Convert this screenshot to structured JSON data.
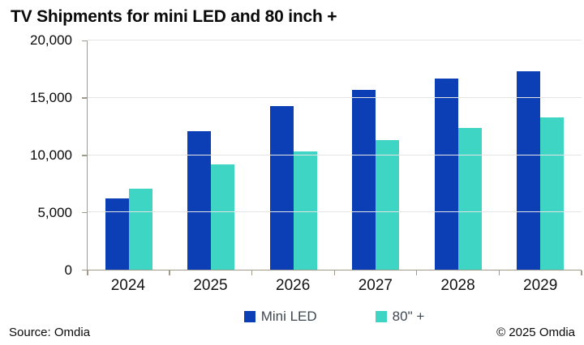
{
  "header": {
    "title": "TV Shipments for mini LED and 80 inch +"
  },
  "chart_data": {
    "type": "bar",
    "title": "TV Shipments for mini LED and 80 inch +",
    "categories": [
      "2024",
      "2025",
      "2026",
      "2027",
      "2028",
      "2029"
    ],
    "series": [
      {
        "name": "Mini LED",
        "color": "#0c3eb6",
        "values": [
          6200,
          12100,
          14300,
          15700,
          16700,
          17300
        ]
      },
      {
        "name": "80\" +",
        "color": "#3ed5c5",
        "values": [
          7100,
          9200,
          10300,
          11300,
          12400,
          13300
        ]
      }
    ],
    "ylim": [
      0,
      20000
    ],
    "ytick_interval": 5000,
    "ytick_labels": [
      "0",
      "5,000",
      "10,000",
      "15,000",
      "20,000"
    ],
    "grid": "horizontal",
    "gridline_color": "#e4e4e4",
    "axis_color": "#a29a8b",
    "legend_position": "bottom"
  },
  "footer": {
    "source": "Source: Omdia",
    "copyright": "© 2025 Omdia"
  }
}
